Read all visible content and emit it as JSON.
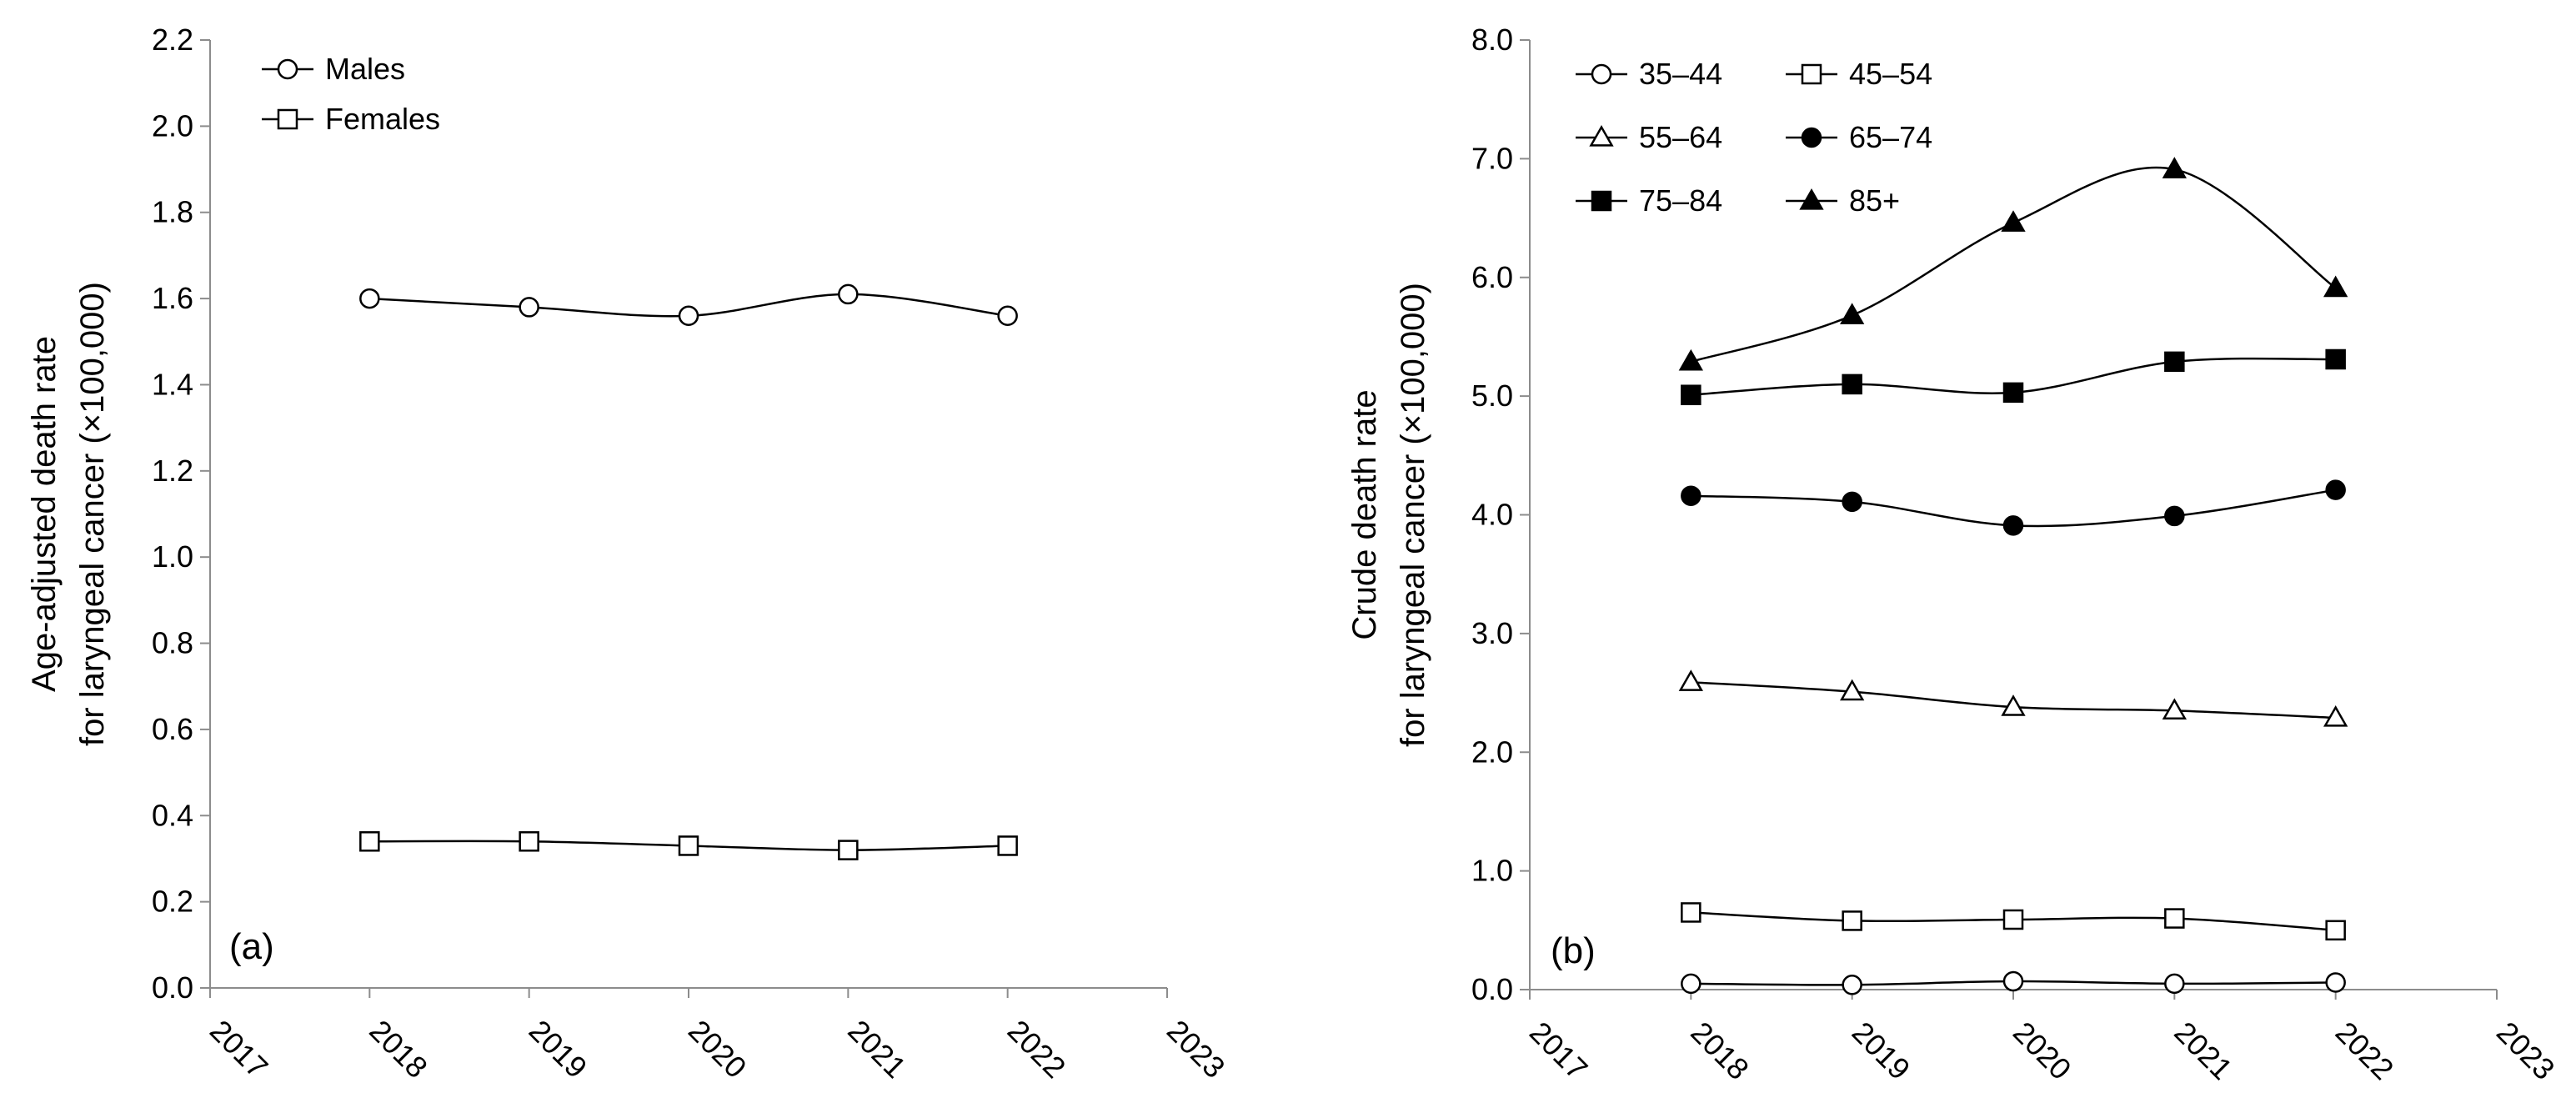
{
  "chart_data": [
    {
      "type": "line",
      "panel_label": "(a)",
      "ylabel_lines": [
        "Age-adjusted death rate",
        "for laryngeal cancer (×100,000)"
      ],
      "xlabel": "",
      "xlim": [
        2017,
        2023
      ],
      "ylim": [
        0.0,
        2.2
      ],
      "x_ticks": [
        "2017",
        "2018",
        "2019",
        "2020",
        "2021",
        "2022",
        "2023"
      ],
      "y_ticks": [
        "0.0",
        "0.2",
        "0.4",
        "0.6",
        "0.8",
        "1.0",
        "1.2",
        "1.4",
        "1.6",
        "1.8",
        "2.0",
        "2.2"
      ],
      "legend_position": "top-left",
      "x": [
        2018,
        2019,
        2020,
        2021,
        2022
      ],
      "series": [
        {
          "name": "Males",
          "marker": "circle-open",
          "values": [
            1.6,
            1.58,
            1.56,
            1.61,
            1.56
          ]
        },
        {
          "name": "Females",
          "marker": "square-open",
          "values": [
            0.34,
            0.34,
            0.33,
            0.32,
            0.33
          ]
        }
      ]
    },
    {
      "type": "line",
      "panel_label": "(b)",
      "ylabel_lines": [
        "Crude death rate",
        "for laryngeal cancer (×100,000)"
      ],
      "xlabel": "",
      "xlim": [
        2017,
        2023
      ],
      "ylim": [
        0.0,
        8.0
      ],
      "x_ticks": [
        "2017",
        "2018",
        "2019",
        "2020",
        "2021",
        "2022",
        "2023"
      ],
      "y_ticks": [
        "0.0",
        "1.0",
        "2.0",
        "3.0",
        "4.0",
        "5.0",
        "6.0",
        "7.0",
        "8.0"
      ],
      "legend_position": "top-left",
      "x": [
        2018,
        2019,
        2020,
        2021,
        2022
      ],
      "series": [
        {
          "name": "35–44",
          "marker": "circle-open",
          "values": [
            0.05,
            0.04,
            0.07,
            0.05,
            0.06
          ]
        },
        {
          "name": "45–54",
          "marker": "square-open",
          "values": [
            0.65,
            0.58,
            0.59,
            0.6,
            0.5
          ]
        },
        {
          "name": "55–64",
          "marker": "triangle-open",
          "values": [
            2.59,
            2.51,
            2.38,
            2.35,
            2.29
          ]
        },
        {
          "name": "65–74",
          "marker": "circle-filled",
          "values": [
            4.16,
            4.11,
            3.91,
            3.99,
            4.21
          ]
        },
        {
          "name": "75–84",
          "marker": "square-filled",
          "values": [
            5.01,
            5.1,
            5.03,
            5.29,
            5.31
          ]
        },
        {
          "name": "85+",
          "marker": "triangle-filled",
          "values": [
            5.29,
            5.68,
            6.46,
            6.91,
            5.91
          ]
        }
      ]
    }
  ]
}
